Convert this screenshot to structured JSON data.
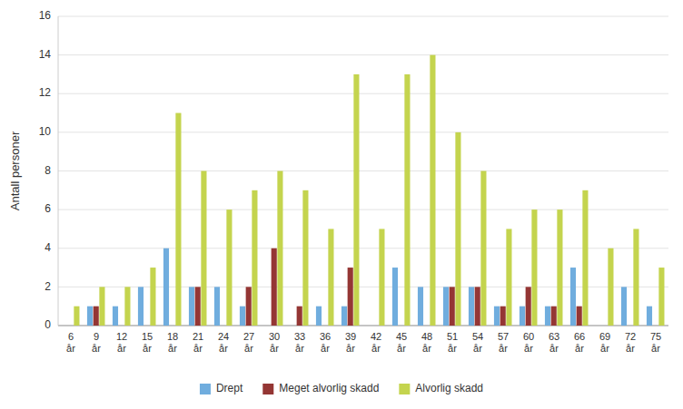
{
  "chart_data": {
    "type": "bar",
    "categories": [
      "6\når",
      "9\når",
      "12\når",
      "15\når",
      "18\når",
      "21\når",
      "24\når",
      "27\når",
      "30\når",
      "33\når",
      "36\når",
      "39\når",
      "42\når",
      "45\når",
      "48\når",
      "51\når",
      "54\når",
      "57\når",
      "60\når",
      "63\når",
      "66\når",
      "69\når",
      "72\når",
      "75\når"
    ],
    "series": [
      {
        "name": "Drept",
        "color": "#70ADDE",
        "values": [
          0,
          1,
          1,
          2,
          4,
          2,
          2,
          1,
          0,
          0,
          1,
          1,
          0,
          3,
          2,
          2,
          2,
          1,
          1,
          1,
          3,
          0,
          2,
          1
        ]
      },
      {
        "name": "Meget alvorlig skadd",
        "color": "#943634",
        "values": [
          0,
          1,
          0,
          0,
          0,
          2,
          0,
          2,
          4,
          1,
          0,
          3,
          0,
          0,
          0,
          2,
          2,
          1,
          2,
          1,
          1,
          0,
          0,
          0
        ]
      },
      {
        "name": "Alvorlig skadd",
        "color": "#C4D44E",
        "values": [
          1,
          2,
          2,
          3,
          11,
          8,
          6,
          7,
          8,
          7,
          5,
          13,
          5,
          13,
          14,
          10,
          8,
          5,
          6,
          6,
          7,
          4,
          5,
          3
        ]
      }
    ],
    "ylabel": "Antall personer",
    "ylim": [
      0,
      16
    ],
    "yticks": [
      0,
      2,
      4,
      6,
      8,
      10,
      12,
      14,
      16
    ],
    "grid": true,
    "legend": "bottom"
  }
}
